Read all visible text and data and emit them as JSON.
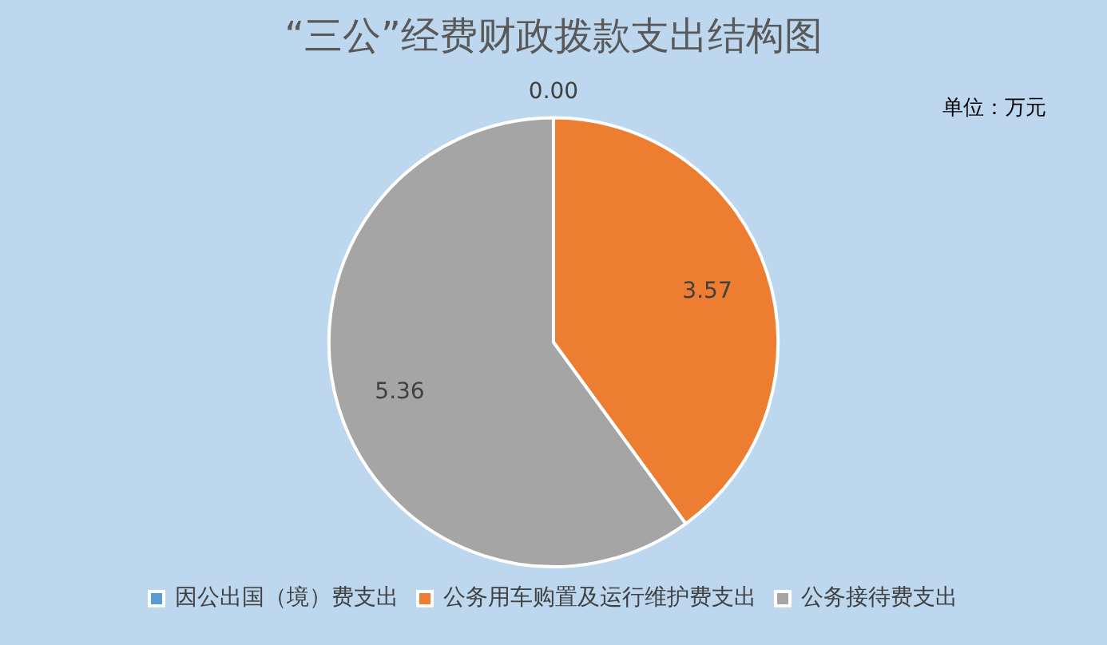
{
  "chart_data": {
    "type": "pie",
    "title": "“三公”经费财政拨款支出结构图",
    "annotations": [
      "单位：万元"
    ],
    "categories": [
      "因公出国（境）费支出",
      "公务用车购置及运行维护费支出",
      "公务接待费支出"
    ],
    "values": [
      0,
      3.57,
      5.36
    ],
    "colors": [
      "#5b9bd5",
      "#ed7d31",
      "#a5a5a5"
    ],
    "value_labels": [
      "0.00",
      "3.57",
      "5.36"
    ],
    "legend": "bottom"
  }
}
